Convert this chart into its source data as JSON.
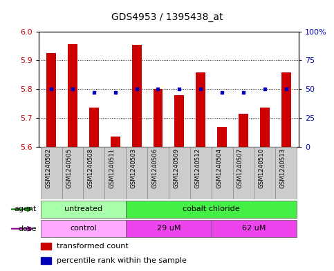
{
  "title": "GDS4953 / 1395438_at",
  "samples": [
    "GSM1240502",
    "GSM1240505",
    "GSM1240508",
    "GSM1240511",
    "GSM1240503",
    "GSM1240506",
    "GSM1240509",
    "GSM1240512",
    "GSM1240504",
    "GSM1240507",
    "GSM1240510",
    "GSM1240513"
  ],
  "transformed_count": [
    5.925,
    5.955,
    5.735,
    5.635,
    5.953,
    5.8,
    5.778,
    5.857,
    5.668,
    5.715,
    5.735,
    5.857
  ],
  "percentile_rank": [
    50,
    50,
    47,
    47,
    50,
    50,
    50,
    50,
    47,
    47,
    50,
    50
  ],
  "ylim_left": [
    5.6,
    6.0
  ],
  "ylim_right": [
    0,
    100
  ],
  "yticks_left": [
    5.6,
    5.7,
    5.8,
    5.9,
    6.0
  ],
  "yticks_right": [
    0,
    25,
    50,
    75,
    100
  ],
  "ytick_labels_right": [
    "0",
    "25",
    "50",
    "75",
    "100%"
  ],
  "bar_color": "#cc0000",
  "dot_color": "#0000bb",
  "bar_width": 0.45,
  "gridline_y": [
    5.7,
    5.8,
    5.9
  ],
  "agent_groups": [
    {
      "label": "untreated",
      "start": 0,
      "end": 4,
      "color": "#aaffaa"
    },
    {
      "label": "cobalt chloride",
      "start": 4,
      "end": 12,
      "color": "#44ee44"
    }
  ],
  "dose_groups": [
    {
      "label": "control",
      "start": 0,
      "end": 4,
      "color": "#ffaaff"
    },
    {
      "label": "29 uM",
      "start": 4,
      "end": 8,
      "color": "#ee44ee"
    },
    {
      "label": "62 uM",
      "start": 8,
      "end": 12,
      "color": "#ee44ee"
    }
  ],
  "agent_arrow_color": "#007700",
  "dose_arrow_color": "#880088",
  "legend_items": [
    {
      "color": "#cc0000",
      "label": "transformed count"
    },
    {
      "color": "#0000bb",
      "label": "percentile rank within the sample"
    }
  ],
  "tick_label_color_left": "#cc0000",
  "tick_label_color_right": "#0000bb"
}
